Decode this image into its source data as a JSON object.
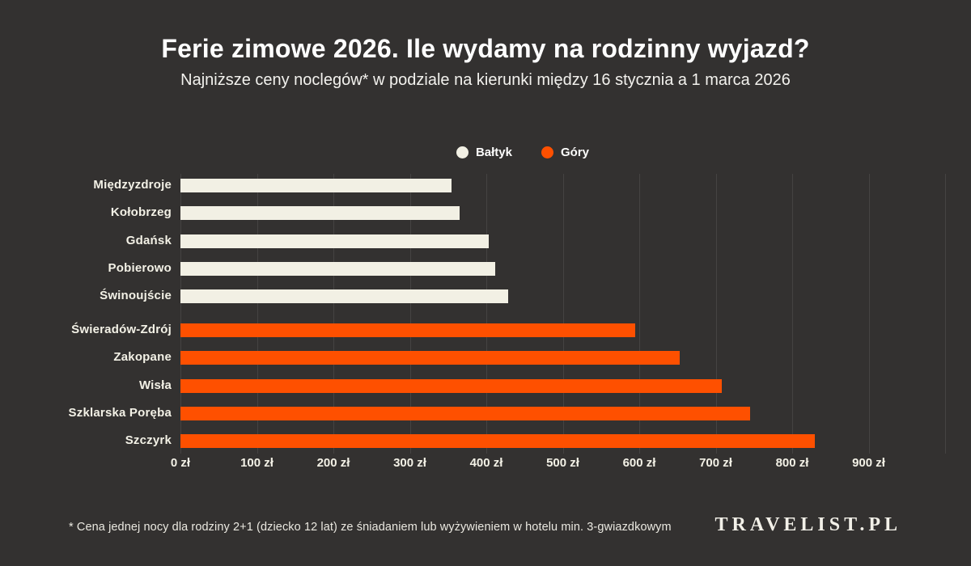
{
  "header": {
    "title": "Ferie zimowe 2026. Ile wydamy na rodzinny wyjazd?",
    "subtitle": "Najniższe ceny noclegów* w podziale na kierunki między 16 stycznia a 1 marca 2026"
  },
  "legend": {
    "items": [
      {
        "label": "Bałtyk",
        "color": "#f2f0e4"
      },
      {
        "label": "Góry",
        "color": "#fe5000"
      }
    ]
  },
  "chart_data": {
    "type": "bar",
    "orientation": "horizontal",
    "title": "Ferie zimowe 2026. Ile wydamy na rodzinny wyjazd?",
    "subtitle": "Najniższe ceny noclegów* w podziale na kierunki między 16 stycznia a 1 marca 2026",
    "unit": "zł",
    "xmax": 1000,
    "xtick_values": [
      0,
      100,
      200,
      300,
      400,
      500,
      600,
      700,
      800,
      900
    ],
    "xticks": [
      "0 zł",
      "100 zł",
      "200 zł",
      "300 zł",
      "400 zł",
      "500 zł",
      "600 zł",
      "700 zł",
      "800 zł",
      "900 zł"
    ],
    "gridlines": [
      0,
      100,
      200,
      300,
      400,
      500,
      600,
      700,
      800,
      900,
      1000
    ],
    "grid": "vertical",
    "legend_position": "top-center",
    "points": [
      {
        "label": "Międzyzdroje",
        "group": "Bałtyk",
        "value": 355
      },
      {
        "label": "Kołobrzeg",
        "group": "Bałtyk",
        "value": 365
      },
      {
        "label": "Gdańsk",
        "group": "Bałtyk",
        "value": 403
      },
      {
        "label": "Pobierowo",
        "group": "Bałtyk",
        "value": 412
      },
      {
        "label": "Świnoujście",
        "group": "Bałtyk",
        "value": 429
      },
      {
        "label": "Świeradów-Zdrój",
        "group": "Góry",
        "value": 595
      },
      {
        "label": "Zakopane",
        "group": "Góry",
        "value": 653
      },
      {
        "label": "Wisła",
        "group": "Góry",
        "value": 708
      },
      {
        "label": "Szklarska Poręba",
        "group": "Góry",
        "value": 745
      },
      {
        "label": "Szczyrk",
        "group": "Góry",
        "value": 830
      }
    ]
  },
  "footer": {
    "footnote": "* Cena jednej nocy dla rodziny 2+1 (dziecko 12 lat) ze śniadaniem lub wyżywieniem w hotelu min. 3-gwiazdkowym",
    "logo": "TRAVELIST.PL"
  },
  "colors": {
    "background": "#333130",
    "baltic_bar": "#f2f0e4",
    "mountain_bar": "#fe5000",
    "gridline": "rgba(255,255,255,0.09)",
    "text": "#ffffff"
  }
}
